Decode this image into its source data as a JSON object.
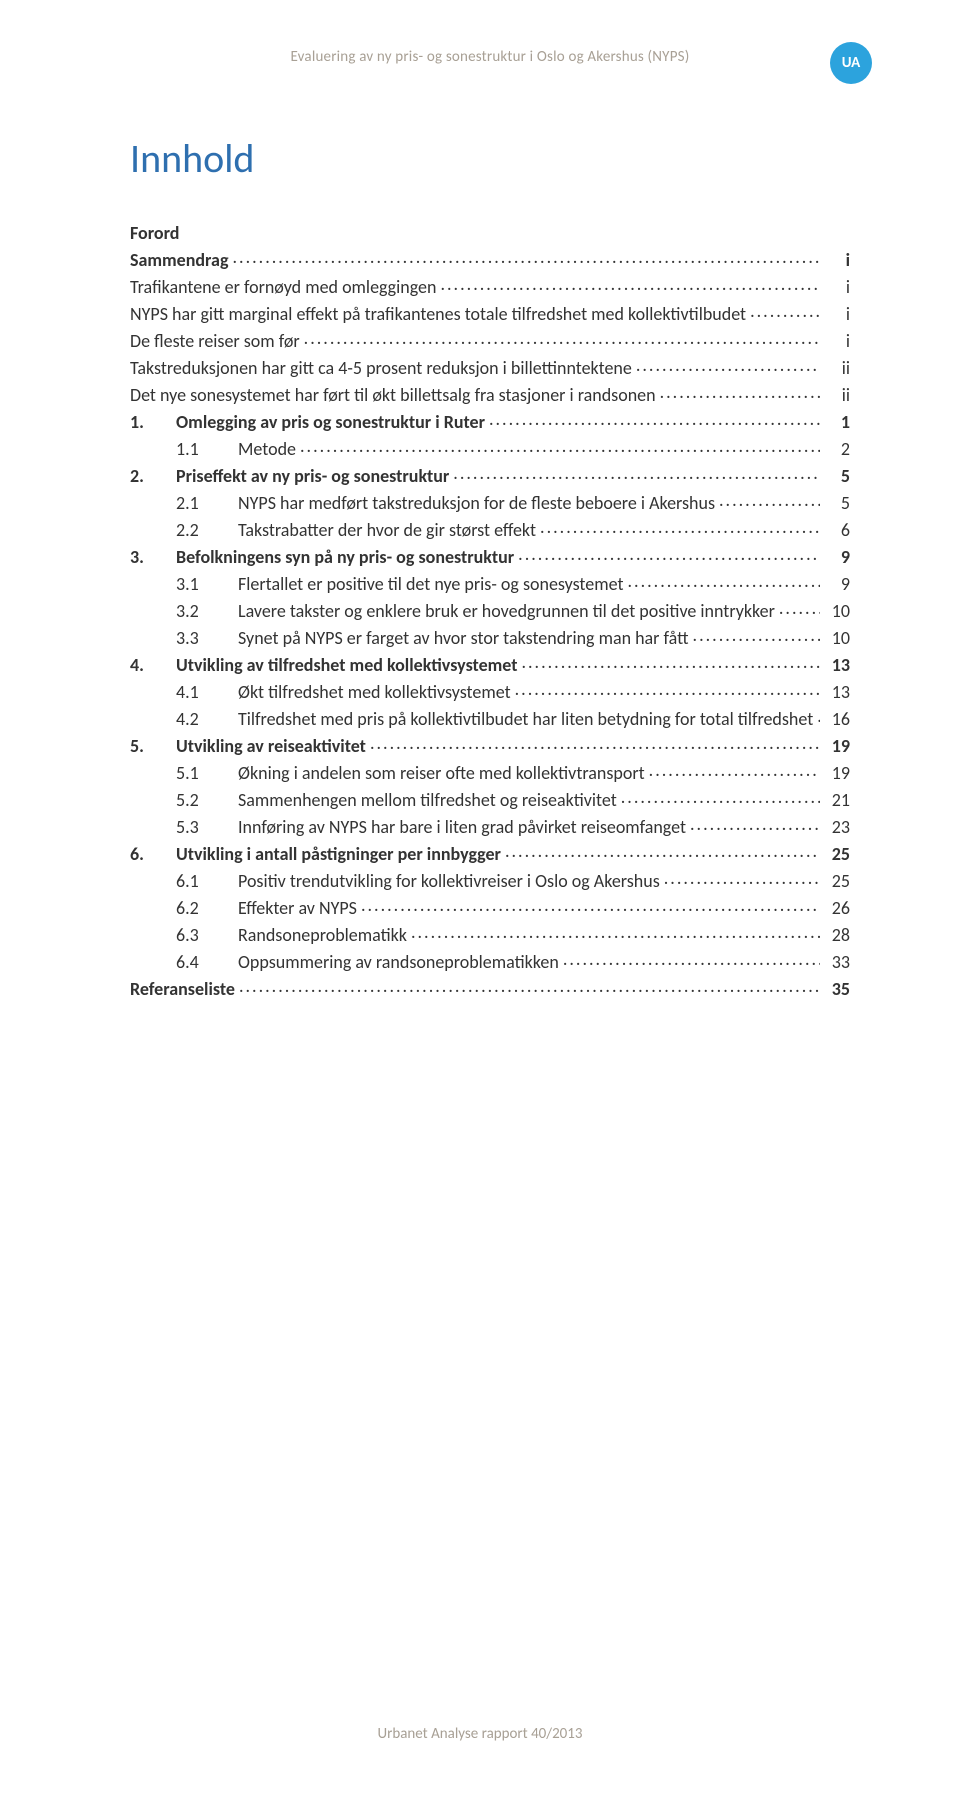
{
  "colors": {
    "header_text": "#a8a095",
    "badge_bg": "#2ca3dd",
    "badge_text": "#ffffff",
    "title": "#2e6faf",
    "body_text": "#333333",
    "footer_text": "#a8a095"
  },
  "header": {
    "running_title": "Evaluering av ny pris- og sonestruktur i Oslo og Akershus (NYPS)",
    "badge_label": "UA"
  },
  "title": "Innhold",
  "toc": [
    {
      "level": 0,
      "num": "",
      "label": "Forord",
      "page": "",
      "bold": true,
      "leader": false
    },
    {
      "level": 0,
      "num": "",
      "label": "Sammendrag",
      "page": "i",
      "bold": true,
      "leader": true
    },
    {
      "level": 2,
      "num": "",
      "label": "Trafikantene er fornøyd med omleggingen",
      "page": "i",
      "bold": false,
      "leader": true,
      "indent": 0
    },
    {
      "level": 2,
      "num": "",
      "label": "NYPS har gitt marginal effekt på trafikantenes totale tilfredshet med kollektivtilbudet",
      "page": "i",
      "bold": false,
      "leader": true,
      "indent": 0
    },
    {
      "level": 2,
      "num": "",
      "label": "De fleste reiser som før",
      "page": "i",
      "bold": false,
      "leader": true,
      "indent": 0
    },
    {
      "level": 2,
      "num": "",
      "label": "Takstreduksjonen har gitt ca 4-5 prosent reduksjon i billettinntektene",
      "page": "ii",
      "bold": false,
      "leader": true,
      "indent": 0
    },
    {
      "level": 2,
      "num": "",
      "label": "Det nye sonesystemet har ført til økt billettsalg fra stasjoner i randsonen",
      "page": "ii",
      "bold": false,
      "leader": true,
      "indent": 0
    },
    {
      "level": 1,
      "num": "1.",
      "label": "Omlegging av pris og sonestruktur i Ruter",
      "page": "1",
      "bold": true,
      "leader": true
    },
    {
      "level": 2,
      "num": "1.1",
      "label": "Metode",
      "page": "2",
      "bold": false,
      "leader": true
    },
    {
      "level": 1,
      "num": "2.",
      "label": "Priseffekt av ny pris- og sonestruktur",
      "page": "5",
      "bold": true,
      "leader": true
    },
    {
      "level": 2,
      "num": "2.1",
      "label": "NYPS har medført takstreduksjon for de fleste beboere i Akershus",
      "page": "5",
      "bold": false,
      "leader": true
    },
    {
      "level": 2,
      "num": "2.2",
      "label": "Takstrabatter der hvor de gir størst effekt",
      "page": "6",
      "bold": false,
      "leader": true
    },
    {
      "level": 1,
      "num": "3.",
      "label": "Befolkningens syn på ny pris- og sonestruktur",
      "page": "9",
      "bold": true,
      "leader": true
    },
    {
      "level": 2,
      "num": "3.1",
      "label": "Flertallet er positive til det nye pris- og sonesystemet",
      "page": "9",
      "bold": false,
      "leader": true
    },
    {
      "level": 2,
      "num": "3.2",
      "label": "Lavere takster og enklere bruk er hovedgrunnen til det positive inntrykker",
      "page": "10",
      "bold": false,
      "leader": true
    },
    {
      "level": 2,
      "num": "3.3",
      "label": "Synet på NYPS er farget av hvor stor takstendring man har fått",
      "page": "10",
      "bold": false,
      "leader": true
    },
    {
      "level": 1,
      "num": "4.",
      "label": "Utvikling av tilfredshet med kollektivsystemet",
      "page": "13",
      "bold": true,
      "leader": true
    },
    {
      "level": 2,
      "num": "4.1",
      "label": "Økt tilfredshet med kollektivsystemet",
      "page": "13",
      "bold": false,
      "leader": true
    },
    {
      "level": 2,
      "num": "4.2",
      "label": "Tilfredshet med pris på kollektivtilbudet har liten betydning for total tilfredshet",
      "page": "16",
      "bold": false,
      "leader": true
    },
    {
      "level": 1,
      "num": "5.",
      "label": "Utvikling av reiseaktivitet",
      "page": "19",
      "bold": true,
      "leader": true
    },
    {
      "level": 2,
      "num": "5.1",
      "label": "Økning i andelen som reiser ofte med kollektivtransport",
      "page": "19",
      "bold": false,
      "leader": true
    },
    {
      "level": 2,
      "num": "5.2",
      "label": "Sammenhengen mellom tilfredshet og reiseaktivitet",
      "page": "21",
      "bold": false,
      "leader": true
    },
    {
      "level": 2,
      "num": "5.3",
      "label": "Innføring av NYPS har bare i liten grad påvirket reiseomfanget",
      "page": "23",
      "bold": false,
      "leader": true
    },
    {
      "level": 1,
      "num": "6.",
      "label": "Utvikling i antall påstigninger per innbygger",
      "page": "25",
      "bold": true,
      "leader": true
    },
    {
      "level": 2,
      "num": "6.1",
      "label": "Positiv trendutvikling for kollektivreiser i Oslo og Akershus",
      "page": "25",
      "bold": false,
      "leader": true
    },
    {
      "level": 2,
      "num": "6.2",
      "label": "Effekter av NYPS",
      "page": "26",
      "bold": false,
      "leader": true
    },
    {
      "level": 2,
      "num": "6.3",
      "label": "Randsoneproblematikk",
      "page": "28",
      "bold": false,
      "leader": true
    },
    {
      "level": 2,
      "num": "6.4",
      "label": "Oppsummering av randsoneproblematikken",
      "page": "33",
      "bold": false,
      "leader": true
    },
    {
      "level": 0,
      "num": "",
      "label": "Referanseliste",
      "page": "35",
      "bold": true,
      "leader": true
    }
  ],
  "footer": {
    "text": "Urbanet Analyse rapport 40/2013"
  }
}
